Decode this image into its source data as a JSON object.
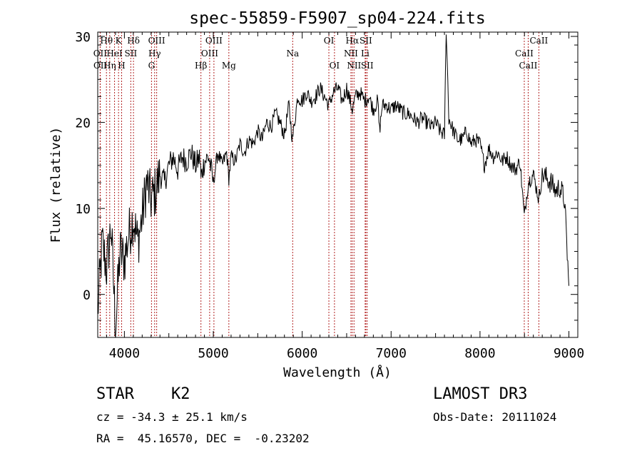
{
  "chart_data": {
    "type": "line",
    "title": "spec-55859-F5907_sp04-224.fits",
    "xlabel": "Wavelength (Å)",
    "ylabel": "Flux (relative)",
    "xlim": [
      3700,
      9100
    ],
    "ylim": [
      -5,
      30.5
    ],
    "xticks": [
      4000,
      5000,
      6000,
      7000,
      8000,
      9000
    ],
    "yticks": [
      0,
      10,
      20,
      30
    ],
    "grid": false,
    "series": [
      {
        "name": "spectrum",
        "x": [
          3700,
          3750,
          3800,
          3850,
          3900,
          3950,
          4000,
          4050,
          4100,
          4150,
          4200,
          4250,
          4300,
          4350,
          4400,
          4450,
          4500,
          4550,
          4600,
          4650,
          4700,
          4750,
          4800,
          4850,
          4861,
          4900,
          4950,
          5000,
          5050,
          5100,
          5150,
          5175,
          5200,
          5250,
          5300,
          5350,
          5400,
          5450,
          5500,
          5550,
          5600,
          5650,
          5700,
          5750,
          5800,
          5850,
          5890,
          5950,
          6000,
          6050,
          6100,
          6150,
          6200,
          6250,
          6300,
          6350,
          6400,
          6450,
          6500,
          6563,
          6600,
          6650,
          6700,
          6750,
          6800,
          6850,
          6870,
          6900,
          6950,
          7000,
          7050,
          7100,
          7150,
          7200,
          7250,
          7300,
          7350,
          7400,
          7450,
          7500,
          7550,
          7600,
          7620,
          7650,
          7700,
          7750,
          7800,
          7850,
          7900,
          7950,
          8000,
          8050,
          8100,
          8150,
          8200,
          8250,
          8300,
          8350,
          8400,
          8450,
          8498,
          8542,
          8600,
          8662,
          8700,
          8750,
          8800,
          8850,
          8900,
          8950,
          9000
        ],
        "values": [
          -2,
          6,
          3,
          8,
          -4,
          5,
          4,
          7,
          9,
          6,
          9,
          13,
          11,
          12,
          14,
          13,
          15,
          16,
          14.5,
          16,
          15.5,
          16.5,
          15,
          16,
          13.5,
          15.5,
          16,
          13,
          16.5,
          15,
          16.5,
          13.5,
          16,
          15.5,
          17.5,
          16.5,
          18,
          17.5,
          19,
          18,
          20,
          19.5,
          21,
          20,
          18.5,
          22,
          18,
          23,
          22.5,
          23.5,
          22.5,
          23,
          24,
          23,
          22,
          23.5,
          24,
          22.5,
          24,
          21.5,
          23,
          23.5,
          22.5,
          23,
          21.5,
          22.5,
          19,
          22,
          22,
          21.5,
          22,
          21.5,
          21,
          21,
          20.5,
          20,
          20.5,
          20,
          19.5,
          20,
          19,
          18.5,
          31,
          20.5,
          19,
          18,
          18,
          19,
          17.5,
          18,
          17.5,
          15,
          17,
          16,
          16.5,
          15.5,
          16,
          15,
          14.5,
          15.5,
          9,
          13,
          14,
          11,
          14,
          13.5,
          13,
          12,
          12.5,
          11,
          1
        ]
      }
    ],
    "lines": [
      {
        "label": "Hθ",
        "x": 3798,
        "row": 1
      },
      {
        "label": "OII",
        "x": 3727,
        "row": 2
      },
      {
        "label": "OII",
        "x": 3729,
        "row": 3
      },
      {
        "label": "Hη",
        "x": 3835,
        "row": 3
      },
      {
        "label": "HeI",
        "x": 3889,
        "row": 2
      },
      {
        "label": "K",
        "x": 3934,
        "row": 1
      },
      {
        "label": "H",
        "x": 3969,
        "row": 3
      },
      {
        "label": "SII",
        "x": 4072,
        "row": 2
      },
      {
        "label": "Hδ",
        "x": 4102,
        "row": 1
      },
      {
        "label": "OIII",
        "x": 4363,
        "row": 1
      },
      {
        "label": "Hγ",
        "x": 4340,
        "row": 2
      },
      {
        "label": "G",
        "x": 4305,
        "row": 3
      },
      {
        "label": "Hβ",
        "x": 4861,
        "row": 3
      },
      {
        "label": "OIII",
        "x": 5007,
        "row": 1
      },
      {
        "label": "OIII",
        "x": 4959,
        "row": 2
      },
      {
        "label": "Mg",
        "x": 5175,
        "row": 3
      },
      {
        "label": "Na",
        "x": 5893,
        "row": 2
      },
      {
        "label": "OI",
        "x": 6300,
        "row": 1
      },
      {
        "label": "OI",
        "x": 6363,
        "row": 3
      },
      {
        "label": "Hα",
        "x": 6563,
        "row": 1
      },
      {
        "label": "NII",
        "x": 6548,
        "row": 2
      },
      {
        "label": "NII",
        "x": 6583,
        "row": 3
      },
      {
        "label": "SII",
        "x": 6716,
        "row": 1
      },
      {
        "label": "Li",
        "x": 6708,
        "row": 2
      },
      {
        "label": "SII",
        "x": 6731,
        "row": 3
      },
      {
        "label": "CaII",
        "x": 8662,
        "row": 1
      },
      {
        "label": "CaII",
        "x": 8498,
        "row": 2
      },
      {
        "label": "CaII",
        "x": 8542,
        "row": 3
      }
    ]
  },
  "footer": {
    "object_class": "STAR",
    "subclass": "K2",
    "survey": "LAMOST DR3",
    "redshift": "cz = -34.3 ± 25.1 km/s",
    "obs_date": "Obs-Date: 20111024",
    "coords": "RA =  45.16570, DEC =  -0.23202"
  }
}
